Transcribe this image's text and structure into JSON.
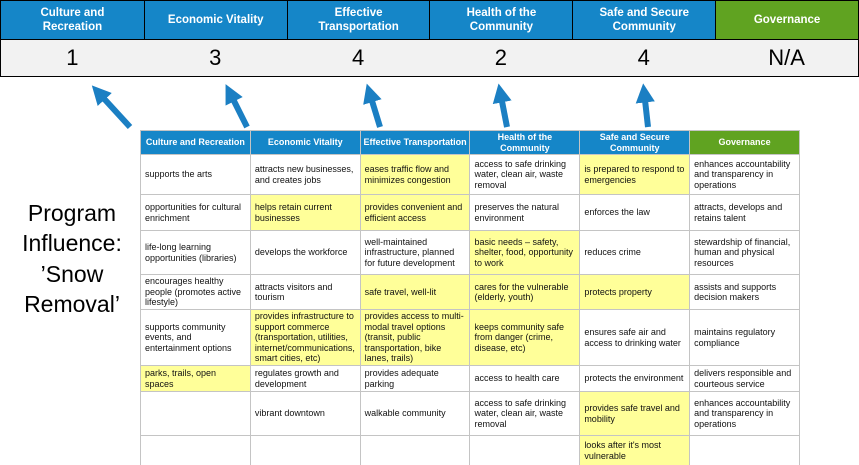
{
  "title": "Program Influence: ’Snow Removal’",
  "colors": {
    "header_blue": "#1586C8",
    "header_green": "#60A321",
    "highlight_yellow": "#FFFF99",
    "arrow_blue": "#1B7FC3",
    "score_row_bg": "#F2F2F2"
  },
  "scoreboard": {
    "columns": [
      {
        "label": "Culture and Recreation",
        "score": "1",
        "color": "blue"
      },
      {
        "label": "Economic Vitality",
        "score": "3",
        "color": "blue"
      },
      {
        "label": "Effective Transportation",
        "score": "4",
        "color": "blue"
      },
      {
        "label": "Health of the Community",
        "score": "2",
        "color": "blue"
      },
      {
        "label": "Safe and Secure Community",
        "score": "4",
        "color": "blue"
      },
      {
        "label": "Governance",
        "score": "N/A",
        "color": "green"
      }
    ]
  },
  "matrix": {
    "headers": [
      {
        "label": "Culture and Recreation",
        "color": "blue"
      },
      {
        "label": "Economic Vitality",
        "color": "blue"
      },
      {
        "label": "Effective Transportation",
        "color": "blue"
      },
      {
        "label": "Health of the Community",
        "color": "blue"
      },
      {
        "label": "Safe and Secure Community",
        "color": "blue"
      },
      {
        "label": "Governance",
        "color": "green"
      }
    ],
    "rows": [
      [
        {
          "text": "supports the arts",
          "highlight": false
        },
        {
          "text": "attracts new businesses, and creates jobs",
          "highlight": false
        },
        {
          "text": "eases traffic flow and minimizes congestion",
          "highlight": true
        },
        {
          "text": "access to safe drinking water, clean air, waste removal",
          "highlight": false
        },
        {
          "text": "is prepared to respond to emergencies",
          "highlight": true
        },
        {
          "text": "enhances accountability and transparency in operations",
          "highlight": false
        }
      ],
      [
        {
          "text": "opportunities for cultural enrichment",
          "highlight": false
        },
        {
          "text": "helps retain current businesses",
          "highlight": true
        },
        {
          "text": "provides convenient and efficient access",
          "highlight": true
        },
        {
          "text": "preserves the natural environment",
          "highlight": false
        },
        {
          "text": "enforces the law",
          "highlight": false
        },
        {
          "text": "attracts, develops and retains talent",
          "highlight": false
        }
      ],
      [
        {
          "text": "life-long learning opportunities (libraries)",
          "highlight": false
        },
        {
          "text": "develops the workforce",
          "highlight": false
        },
        {
          "text": "well-maintained infrastructure, planned for future development",
          "highlight": false
        },
        {
          "text": "basic needs – safety, shelter, food, opportunity to work",
          "highlight": true
        },
        {
          "text": "reduces crime",
          "highlight": false
        },
        {
          "text": "stewardship of financial, human and physical resources",
          "highlight": false
        }
      ],
      [
        {
          "text": "encourages healthy people (promotes active lifestyle)",
          "highlight": false
        },
        {
          "text": "attracts visitors and tourism",
          "highlight": false
        },
        {
          "text": "safe travel, well-lit",
          "highlight": true
        },
        {
          "text": "cares for the vulnerable (elderly, youth)",
          "highlight": true
        },
        {
          "text": "protects property",
          "highlight": true
        },
        {
          "text": "assists and supports decision makers",
          "highlight": false
        }
      ],
      [
        {
          "text": "supports community events, and entertainment options",
          "highlight": false
        },
        {
          "text": "provides infrastructure to support commerce (transportation, utilities, internet/communications, smart cities, etc)",
          "highlight": true
        },
        {
          "text": "provides access to multi-modal travel options (transit, public transportation, bike lanes, trails)",
          "highlight": true
        },
        {
          "text": "keeps community safe from danger (crime, disease, etc)",
          "highlight": true
        },
        {
          "text": "ensures safe air and access to drinking water",
          "highlight": false
        },
        {
          "text": "maintains regulatory compliance",
          "highlight": false
        }
      ],
      [
        {
          "text": "parks, trails, open spaces",
          "highlight": true
        },
        {
          "text": "regulates growth and development",
          "highlight": false
        },
        {
          "text": "provides adequate parking",
          "highlight": false
        },
        {
          "text": "access to health care",
          "highlight": false
        },
        {
          "text": "protects the environment",
          "highlight": false
        },
        {
          "text": "delivers responsible and courteous service",
          "highlight": false
        }
      ],
      [
        {
          "text": "",
          "highlight": false
        },
        {
          "text": "vibrant downtown",
          "highlight": false
        },
        {
          "text": "walkable community",
          "highlight": false
        },
        {
          "text": "access to safe drinking water, clean air, waste removal",
          "highlight": false
        },
        {
          "text": "provides safe travel and mobility",
          "highlight": true
        },
        {
          "text": "enhances accountability and transparency in operations",
          "highlight": false
        }
      ],
      [
        {
          "text": "",
          "highlight": false
        },
        {
          "text": "",
          "highlight": false
        },
        {
          "text": "",
          "highlight": false
        },
        {
          "text": "",
          "highlight": false
        },
        {
          "text": "looks after it's most vulnerable",
          "highlight": true
        },
        {
          "text": "",
          "highlight": false
        }
      ]
    ]
  }
}
